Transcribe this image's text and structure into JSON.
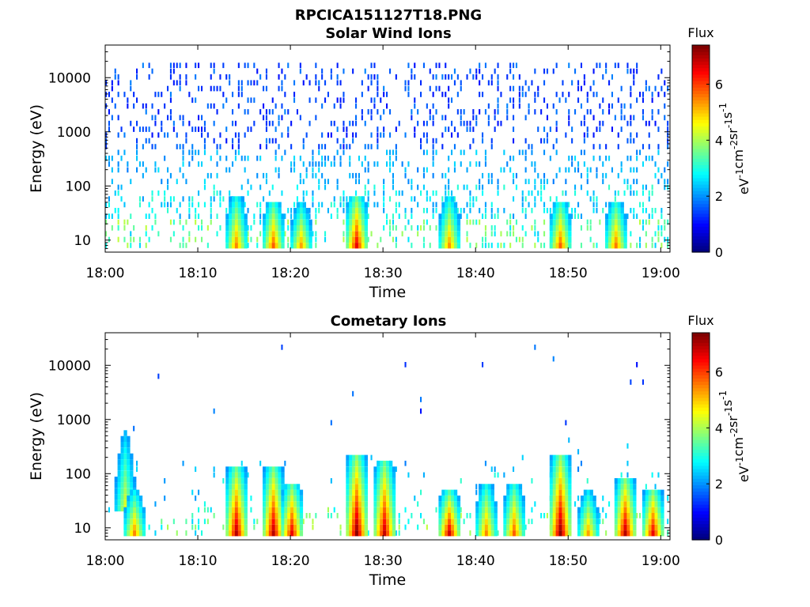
{
  "figure_title": "RPCICA151127T18.PNG",
  "chart_data": [
    {
      "type": "heatmap",
      "title": "Solar Wind Ions",
      "xlabel": "Time",
      "ylabel": "Energy (eV)",
      "y_scale": "log",
      "xlim": [
        "18:00",
        "19:01"
      ],
      "ylim": [
        6,
        40000
      ],
      "x_ticks": [
        "18:00",
        "18:10",
        "18:20",
        "18:30",
        "18:40",
        "18:50",
        "19:00"
      ],
      "y_ticks": [
        "10",
        "100",
        "1000",
        "10000"
      ],
      "colorbar": {
        "title": "Flux",
        "label": "eV-1cm-2sr-1s-1",
        "label_display": {
          "base": [
            "eV",
            "cm",
            "sr",
            "s"
          ],
          "exp": [
            "-1",
            "-2",
            "-1",
            "-1"
          ]
        },
        "range": [
          0,
          7.4
        ],
        "ticks": [
          "0",
          "2",
          "4",
          "6"
        ],
        "colormap": "jet"
      },
      "columns": [
        {
          "t": "18:14",
          "emin": 7,
          "emax": 60,
          "peak": 5.5
        },
        {
          "t": "18:18",
          "emin": 7,
          "emax": 50,
          "peak": 5.8
        },
        {
          "t": "18:21",
          "emin": 7,
          "emax": 40,
          "peak": 5.3
        },
        {
          "t": "18:27",
          "emin": 7,
          "emax": 60,
          "peak": 6.6
        },
        {
          "t": "18:37",
          "emin": 7,
          "emax": 55,
          "peak": 5.4
        },
        {
          "t": "18:49",
          "emin": 7,
          "emax": 50,
          "peak": 5.8
        },
        {
          "t": "18:55",
          "emin": 7,
          "emax": 50,
          "peak": 5.6
        }
      ],
      "background": {
        "dist": "broad",
        "density": 0.6,
        "emin": 7,
        "emax": 15000,
        "seed": 11
      }
    },
    {
      "type": "heatmap",
      "title": "Cometary Ions",
      "xlabel": "Time",
      "ylabel": "Energy (eV)",
      "y_scale": "log",
      "xlim": [
        "18:00",
        "19:01"
      ],
      "ylim": [
        6,
        40000
      ],
      "x_ticks": [
        "18:00",
        "18:10",
        "18:20",
        "18:30",
        "18:40",
        "18:50",
        "19:00"
      ],
      "y_ticks": [
        "10",
        "100",
        "1000",
        "10000"
      ],
      "colorbar": {
        "title": "Flux",
        "label": "eV-1cm-2sr-1s-1",
        "label_display": {
          "base": [
            "eV",
            "cm",
            "sr",
            "s"
          ],
          "exp": [
            "-1",
            "-2",
            "-1",
            "-1"
          ]
        },
        "range": [
          0,
          7.4
        ],
        "ticks": [
          "0",
          "2",
          "4",
          "6"
        ],
        "colormap": "jet"
      },
      "columns": [
        {
          "t": "18:02",
          "emin": 20,
          "emax": 500,
          "peak": 4.5
        },
        {
          "t": "18:03",
          "emin": 7,
          "emax": 40,
          "peak": 5.5
        },
        {
          "t": "18:14",
          "emin": 7,
          "emax": 120,
          "peak": 7.0
        },
        {
          "t": "18:18",
          "emin": 7,
          "emax": 120,
          "peak": 7.0
        },
        {
          "t": "18:20",
          "emin": 7,
          "emax": 60,
          "peak": 6.6
        },
        {
          "t": "18:27",
          "emin": 7,
          "emax": 200,
          "peak": 7.3
        },
        {
          "t": "18:30",
          "emin": 7,
          "emax": 150,
          "peak": 6.9
        },
        {
          "t": "18:37",
          "emin": 7,
          "emax": 40,
          "peak": 6.8
        },
        {
          "t": "18:41",
          "emin": 7,
          "emax": 60,
          "peak": 5.5
        },
        {
          "t": "18:44",
          "emin": 7,
          "emax": 60,
          "peak": 5.8
        },
        {
          "t": "18:49",
          "emin": 7,
          "emax": 200,
          "peak": 7.3
        },
        {
          "t": "18:52",
          "emin": 7,
          "emax": 40,
          "peak": 5.3
        },
        {
          "t": "18:56",
          "emin": 7,
          "emax": 80,
          "peak": 7.0
        },
        {
          "t": "18:59",
          "emin": 7,
          "emax": 50,
          "peak": 6.6
        }
      ],
      "background": {
        "dist": "low",
        "density": 0.3,
        "emin": 7,
        "emax": 20000,
        "seed": 29
      }
    }
  ]
}
